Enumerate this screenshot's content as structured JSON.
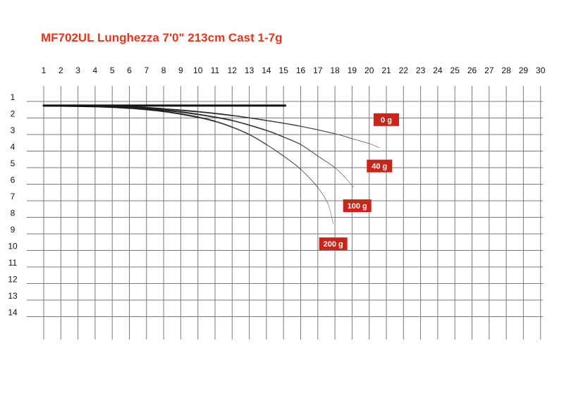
{
  "chart_data": {
    "type": "line",
    "title": "MF702UL Lunghezza 7'0\" 213cm Cast 1-7g",
    "x_ticks": [
      1,
      2,
      3,
      4,
      5,
      6,
      7,
      8,
      9,
      10,
      11,
      12,
      13,
      14,
      15,
      16,
      17,
      18,
      19,
      20,
      21,
      22,
      23,
      24,
      25,
      26,
      27,
      28,
      29,
      30
    ],
    "y_ticks": [
      1,
      2,
      3,
      4,
      5,
      6,
      7,
      8,
      9,
      10,
      11,
      12,
      13,
      14
    ],
    "xlim": [
      1,
      30
    ],
    "ylim": [
      1,
      14
    ],
    "grid": true,
    "legend": "labels placed at curve tips",
    "label_color": "#c8261b",
    "series": [
      {
        "name": "0 g",
        "x": [
          1,
          15.1
        ],
        "y": [
          1.25,
          1.25
        ]
      },
      {
        "name": "40 g",
        "x": [
          1,
          4,
          6,
          8,
          10,
          12,
          14,
          16,
          18,
          19,
          20,
          20.6
        ],
        "y": [
          1.25,
          1.27,
          1.33,
          1.45,
          1.62,
          1.85,
          2.15,
          2.5,
          2.95,
          3.25,
          3.55,
          3.8
        ]
      },
      {
        "name": "100 g",
        "x": [
          1,
          4,
          6,
          8,
          10,
          12,
          14,
          15,
          16,
          17,
          18,
          18.6,
          19.1
        ],
        "y": [
          1.25,
          1.28,
          1.36,
          1.52,
          1.78,
          2.15,
          2.75,
          3.15,
          3.6,
          4.3,
          5.0,
          5.6,
          6.2
        ]
      },
      {
        "name": "200 g",
        "x": [
          1,
          4,
          6,
          8,
          10,
          11,
          12,
          13,
          14,
          15,
          16,
          17,
          17.6,
          17.9
        ],
        "y": [
          1.25,
          1.3,
          1.4,
          1.6,
          1.95,
          2.2,
          2.55,
          3.0,
          3.6,
          4.3,
          5.1,
          6.2,
          7.2,
          8.4
        ]
      }
    ],
    "labels": [
      {
        "text": "0 g",
        "x": 21,
        "y": 2.1
      },
      {
        "text": "40 g",
        "x": 20.6,
        "y": 4.9
      },
      {
        "text": "100 g",
        "x": 19.3,
        "y": 7.3
      },
      {
        "text": "200 g",
        "x": 17.9,
        "y": 9.6
      }
    ]
  }
}
